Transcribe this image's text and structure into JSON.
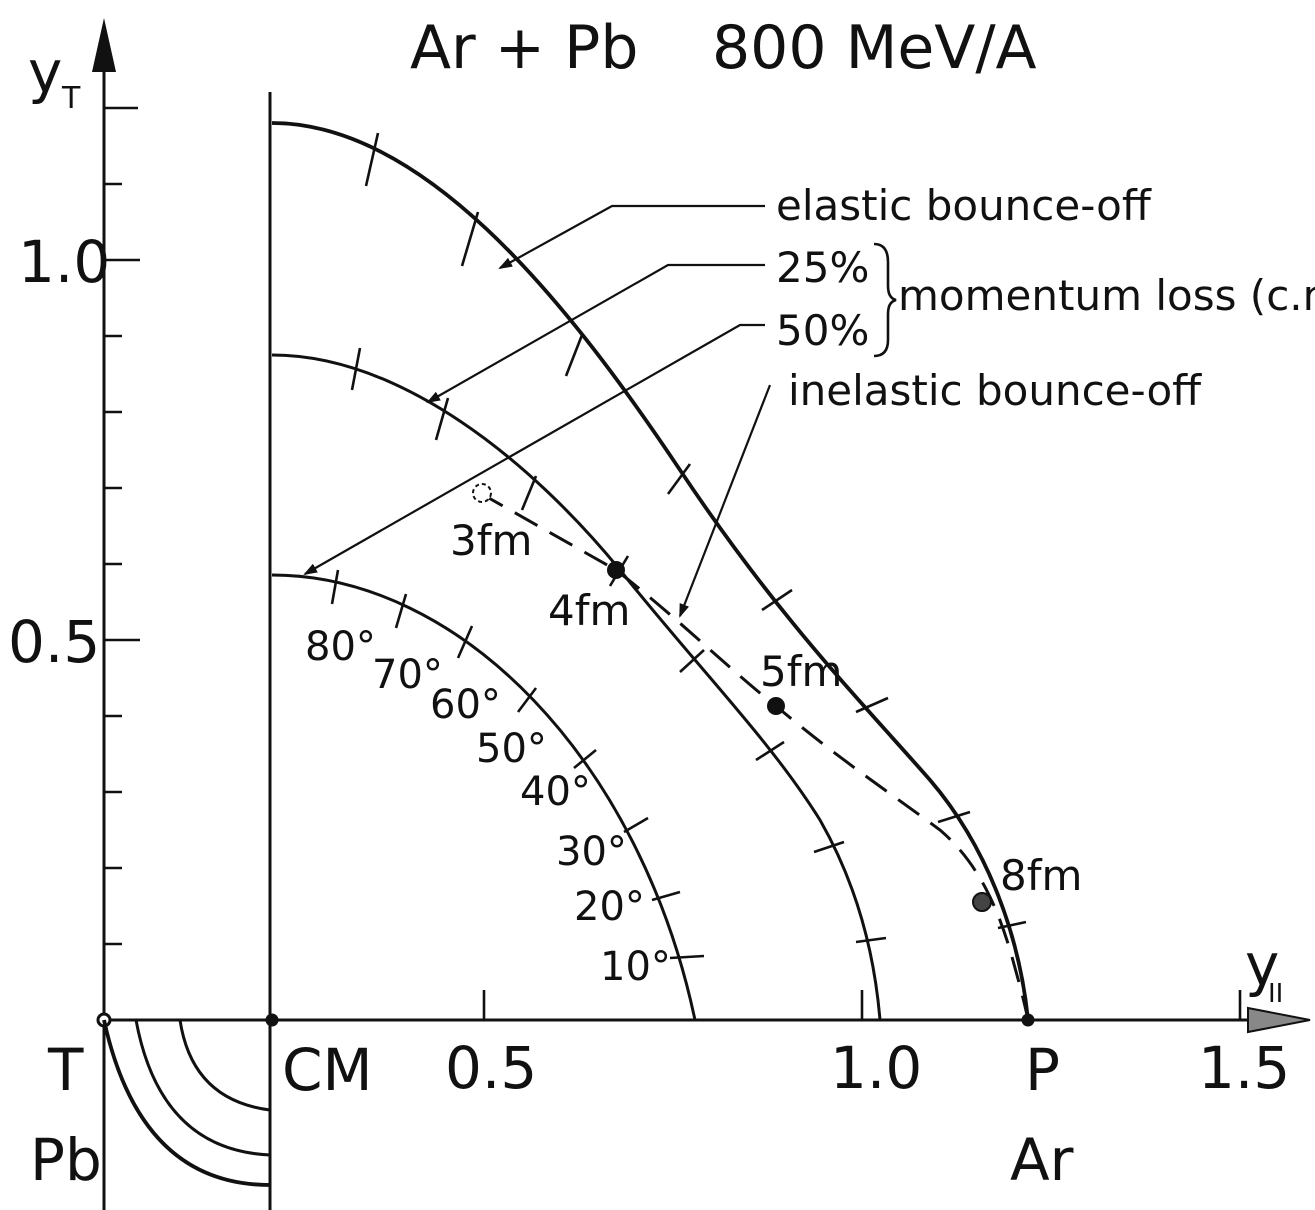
{
  "title": {
    "system": "Ar + Pb",
    "energy": "800 MeV/A"
  },
  "axes": {
    "x_label_main": "y",
    "x_label_sub": "II",
    "y_label_main": "y",
    "y_label_sub": "T",
    "y_tick_labels": [
      "1.0",
      "0.5"
    ],
    "x_tick_labels": [
      "0.5",
      "1.0",
      "1.5"
    ]
  },
  "points": {
    "T": "T",
    "Pb": "Pb",
    "CM": "CM",
    "P": "P",
    "Ar": "Ar"
  },
  "annotations": {
    "elastic": "elastic bounce-off",
    "p25": "25%",
    "p50": "50%",
    "momentum_loss": "momentum loss (c.m.)",
    "inelastic": "inelastic bounce-off"
  },
  "impact_parameters": [
    "3fm",
    "4fm",
    "5fm",
    "8fm"
  ],
  "angles": [
    "80°",
    "70°",
    "60°",
    "50°",
    "40°",
    "30°",
    "20°",
    "10°"
  ]
}
